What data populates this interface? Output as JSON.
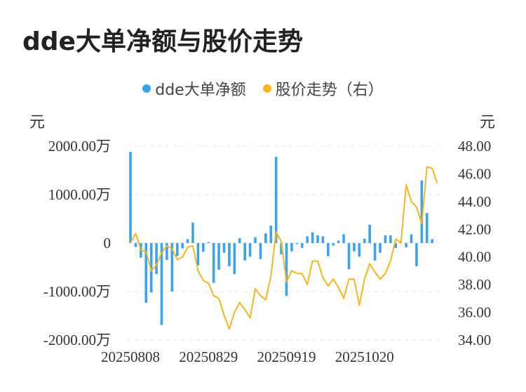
{
  "title": "dde大单净额与股价走势",
  "colors": {
    "bar": "#3BA3EC",
    "line": "#F5B51F",
    "grid": "#E5E5E5"
  },
  "legend": {
    "bar_label": "dde大单净额",
    "line_label": "股价走势（右）"
  },
  "units": {
    "left": "元",
    "right": "元"
  },
  "chart_data": {
    "type": "bar+line",
    "y_left": {
      "ticks": [
        "2000.00万",
        "1000.00万",
        "0",
        "-1000.00万",
        "-2000.00万"
      ],
      "range": [
        -2000,
        2000
      ],
      "unit": "万元"
    },
    "y_right": {
      "ticks": [
        "48.00",
        "46.00",
        "44.00",
        "42.00",
        "40.00",
        "38.00",
        "36.00",
        "34.00"
      ],
      "range": [
        34,
        48
      ]
    },
    "x_ticks": [
      {
        "label": "20250808",
        "index": 0
      },
      {
        "label": "20250829",
        "index": 15
      },
      {
        "label": "20250919",
        "index": 30
      },
      {
        "label": "20251020",
        "index": 45
      }
    ],
    "n_points": 61,
    "grid": true,
    "legend_position": "top",
    "series": [
      {
        "name": "dde大单净额",
        "type": "bar",
        "axis": "left",
        "values": [
          1880,
          -80,
          -300,
          -1230,
          -1020,
          -640,
          -1690,
          -350,
          -1000,
          -270,
          -110,
          80,
          420,
          -460,
          -180,
          20,
          -820,
          -550,
          -200,
          -480,
          -640,
          100,
          -360,
          -280,
          120,
          -330,
          200,
          360,
          1780,
          -230,
          -1090,
          -170,
          -20,
          -100,
          140,
          220,
          160,
          140,
          -270,
          -50,
          50,
          180,
          -540,
          -170,
          -280,
          90,
          380,
          -360,
          -200,
          160,
          160,
          -100,
          0,
          -90,
          180,
          -480,
          1290,
          620,
          80,
          0,
          0
        ],
        "note_last_points": "61 slots incl. 2 trailing for spacing"
      },
      {
        "name": "股价走势",
        "type": "line",
        "axis": "right",
        "values": [
          41.0,
          41.7,
          40.5,
          40.4,
          39.0,
          39.4,
          40.3,
          40.8,
          40.6,
          39.8,
          40.0,
          40.7,
          40.8,
          39.0,
          38.3,
          38.1,
          37.2,
          37.0,
          35.8,
          34.8,
          36.0,
          36.7,
          36.2,
          35.6,
          37.7,
          37.2,
          36.9,
          38.6,
          41.8,
          41.1,
          38.2,
          39.0,
          38.8,
          38.8,
          38.0,
          39.7,
          39.7,
          38.5,
          37.9,
          38.4,
          37.8,
          37.0,
          38.4,
          38.4,
          36.5,
          38.4,
          39.5,
          38.9,
          38.4,
          38.8,
          39.7,
          41.3,
          41.0,
          45.2,
          44.0,
          43.6,
          42.4,
          46.5,
          46.4,
          45.3
        ]
      }
    ]
  }
}
